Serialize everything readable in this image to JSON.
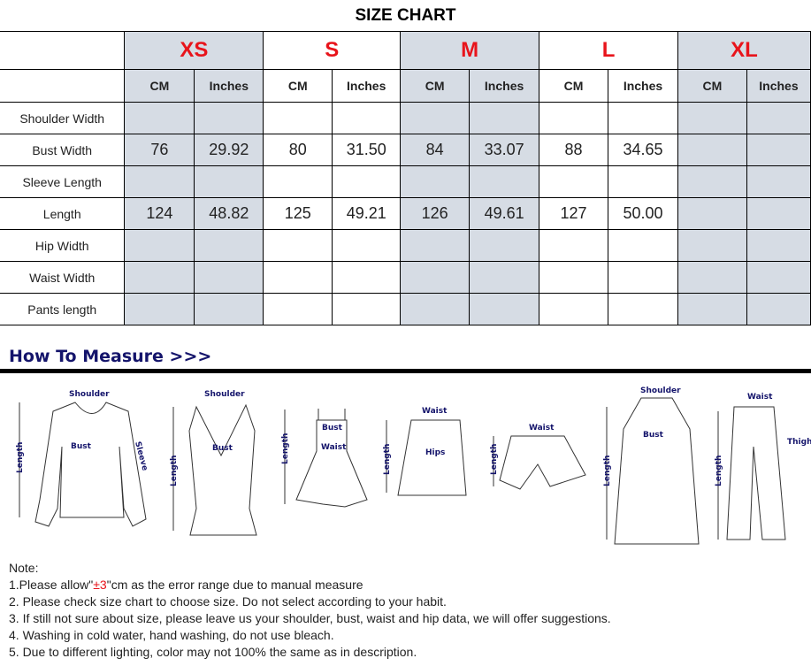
{
  "title": "SIZE CHART",
  "sizes": [
    "XS",
    "S",
    "M",
    "L",
    "XL"
  ],
  "units": [
    "CM",
    "Inches"
  ],
  "rows": [
    {
      "label": "Shoulder Width",
      "values": [
        "",
        "",
        "",
        "",
        "",
        "",
        "",
        "",
        "",
        ""
      ]
    },
    {
      "label": "Bust Width",
      "values": [
        "76",
        "29.92",
        "80",
        "31.50",
        "84",
        "33.07",
        "88",
        "34.65",
        "",
        ""
      ]
    },
    {
      "label": "Sleeve Length",
      "values": [
        "",
        "",
        "",
        "",
        "",
        "",
        "",
        "",
        "",
        ""
      ]
    },
    {
      "label": "Length",
      "values": [
        "124",
        "48.82",
        "125",
        "49.21",
        "126",
        "49.61",
        "127",
        "50.00",
        "",
        ""
      ]
    },
    {
      "label": "Hip Width",
      "values": [
        "",
        "",
        "",
        "",
        "",
        "",
        "",
        "",
        "",
        ""
      ]
    },
    {
      "label": "Waist Width",
      "values": [
        "",
        "",
        "",
        "",
        "",
        "",
        "",
        "",
        "",
        ""
      ]
    },
    {
      "label": "Pants length",
      "values": [
        "",
        "",
        "",
        "",
        "",
        "",
        "",
        "",
        "",
        ""
      ]
    }
  ],
  "colors": {
    "shade": "#d6dce4",
    "size_text": "#e8141b",
    "heading": "#14146b"
  },
  "how_to_measure": "How To Measure >>>",
  "illustration_labels": {
    "shoulder": "Shoulder",
    "bust": "Bust",
    "sleeve": "Sleeve",
    "length": "Length",
    "waist": "Waist",
    "hips": "Hips",
    "thigh": "Thigh"
  },
  "notes": {
    "heading": "Note:",
    "line1_pre": "1.Please allow\"",
    "line1_red": "±3",
    "line1_post": "\"cm as the error range due to manual measure",
    "line2": "2. Please check size chart to choose size. Do not select according to your habit.",
    "line3": "3. If still not sure about size, please leave us your shoulder, bust, waist and hip data, we will offer suggestions.",
    "line4": "4. Washing in cold water, hand washing, do not use bleach.",
    "line5": "5. Due to different lighting, color may not 100% the same as in description."
  }
}
